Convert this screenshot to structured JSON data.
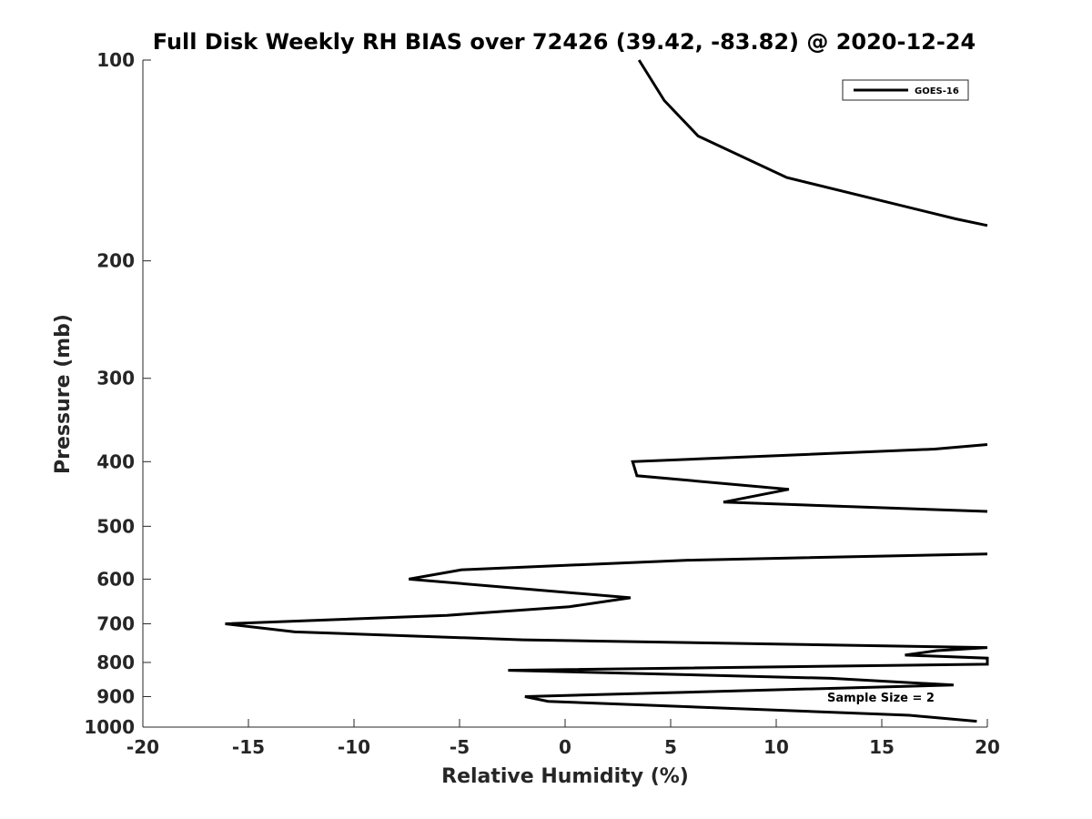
{
  "chart_data": {
    "type": "line",
    "title": "Full Disk Weekly RH BIAS over 72426 (39.42, -83.82) @ 2020-12-24",
    "xlabel": "Relative Humidity (%)",
    "ylabel": "Pressure (mb)",
    "xlim": [
      -20,
      20
    ],
    "ylim": [
      100,
      1000
    ],
    "y_scale": "log",
    "y_reversed": true,
    "x_ticks": [
      -20,
      -15,
      -10,
      -5,
      0,
      5,
      10,
      15,
      20
    ],
    "x_tick_labels": [
      "-20",
      "-15",
      "-10",
      "-5",
      "0",
      "5",
      "10",
      "15",
      "20"
    ],
    "y_ticks": [
      100,
      200,
      300,
      400,
      500,
      600,
      700,
      800,
      900,
      1000
    ],
    "y_tick_labels": [
      "100",
      "200",
      "300",
      "400",
      "500",
      "600",
      "700",
      "800",
      "900",
      "1000"
    ],
    "grid": false,
    "legend_position": "top-right",
    "annotation": "Sample Size = 2",
    "series": [
      {
        "name": "GOES-16",
        "color": "#000000",
        "segments": [
          [
            {
              "x": 3.5,
              "p": 100
            },
            {
              "x": 4.7,
              "p": 115
            },
            {
              "x": 6.3,
              "p": 130
            },
            {
              "x": 10.5,
              "p": 150
            },
            {
              "x": 18.5,
              "p": 173
            },
            {
              "x": 20.0,
              "p": 177
            }
          ],
          [
            {
              "x": 20.0,
              "p": 377
            },
            {
              "x": 17.5,
              "p": 383
            },
            {
              "x": 3.2,
              "p": 400
            },
            {
              "x": 3.4,
              "p": 420
            },
            {
              "x": 10.6,
              "p": 440
            },
            {
              "x": 7.5,
              "p": 460
            },
            {
              "x": 20.0,
              "p": 475
            }
          ],
          [
            {
              "x": 20.0,
              "p": 550
            },
            {
              "x": 5.8,
              "p": 562
            },
            {
              "x": -4.9,
              "p": 581
            },
            {
              "x": -7.4,
              "p": 600
            },
            {
              "x": 3.1,
              "p": 640
            },
            {
              "x": 0.2,
              "p": 660
            },
            {
              "x": -5.6,
              "p": 680
            },
            {
              "x": -16.1,
              "p": 700
            },
            {
              "x": -12.8,
              "p": 720
            },
            {
              "x": -2.0,
              "p": 740
            },
            {
              "x": 20.0,
              "p": 760
            },
            {
              "x": 17.6,
              "p": 768
            },
            {
              "x": 16.1,
              "p": 780
            },
            {
              "x": 20.0,
              "p": 788
            },
            {
              "x": 20.0,
              "p": 805
            },
            {
              "x": -2.7,
              "p": 822
            },
            {
              "x": 12.6,
              "p": 845
            },
            {
              "x": 18.4,
              "p": 865
            },
            {
              "x": -1.9,
              "p": 900
            },
            {
              "x": -0.8,
              "p": 915
            },
            {
              "x": 16.3,
              "p": 960
            },
            {
              "x": 19.5,
              "p": 980
            }
          ]
        ]
      }
    ]
  }
}
